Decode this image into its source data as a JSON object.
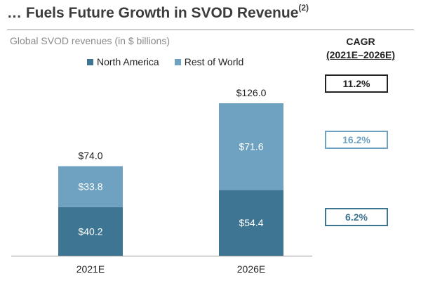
{
  "header": {
    "title": "… Fuels Future Growth in SVOD Revenue",
    "title_superscript": "(2)",
    "subtitle": "Global SVOD revenues (in $ billions)"
  },
  "cagr": {
    "heading": "CAGR",
    "range": "(2021E–2026E)",
    "total": "11.2%",
    "rest_of_world": "16.2%",
    "north_america": "6.2%",
    "colors": {
      "total": "#222222",
      "rest_of_world": "#6fa2c1",
      "north_america": "#3e7592"
    }
  },
  "chart_data": {
    "type": "bar",
    "stacked": true,
    "categories": [
      "2021E",
      "2026E"
    ],
    "series": [
      {
        "name": "North America",
        "values": [
          40.2,
          54.4
        ],
        "labels": [
          "$40.2",
          "$54.4"
        ],
        "color": "#3e7592"
      },
      {
        "name": "Rest of World",
        "values": [
          33.8,
          71.6
        ],
        "labels": [
          "$33.8",
          "$71.6"
        ],
        "color": "#6fa2c1"
      }
    ],
    "totals": [
      74.0,
      126.0
    ],
    "total_labels": [
      "$74.0",
      "$126.0"
    ],
    "ylim": [
      0,
      126
    ],
    "grid": false,
    "legend": "top"
  }
}
